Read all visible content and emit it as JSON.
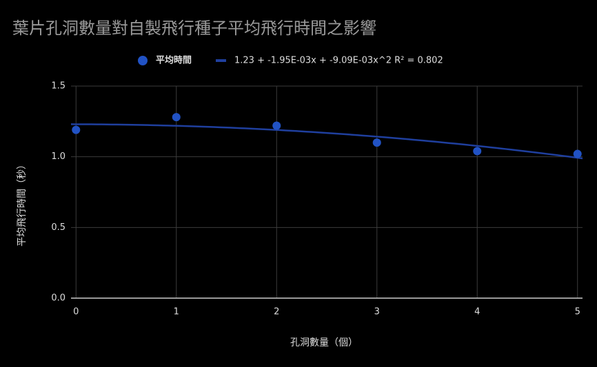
{
  "chart_data": {
    "type": "scatter",
    "title": "葉片孔洞數量對自製飛行種子平均飛行時間之影響",
    "x_label": "孔洞數量（個）",
    "y_label": "平均飛行時間（秒）",
    "x": [
      0,
      1,
      2,
      3,
      4,
      5
    ],
    "series": [
      {
        "name": "平均時間",
        "color": "#2152c4",
        "values": [
          1.19,
          1.28,
          1.22,
          1.1,
          1.04,
          1.02
        ]
      }
    ],
    "trendline": {
      "name": "1.23 + -1.95E-03x + -9.09E-03x^2 R² = 0.802",
      "color": "#1f3f9e",
      "coefficients": [
        1.23,
        -0.00195,
        -0.00909
      ]
    },
    "xlim": [
      -0.05,
      5.05
    ],
    "xticks": [
      0,
      1,
      2,
      3,
      4,
      5
    ],
    "ylim": [
      0,
      1.5
    ],
    "yticks": [
      {
        "value": 0,
        "label": "0.0"
      },
      0.5,
      {
        "value": 1,
        "label": "1.0"
      },
      1.5
    ],
    "grid": true
  }
}
